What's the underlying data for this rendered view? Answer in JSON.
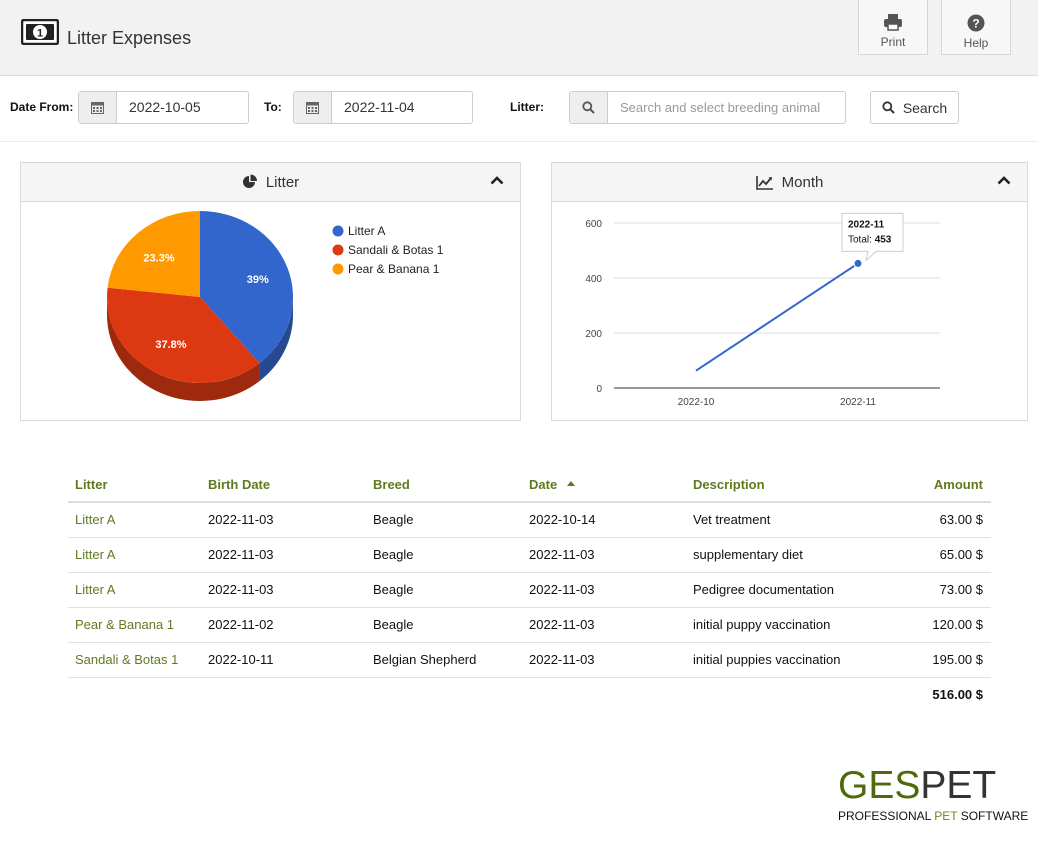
{
  "header": {
    "title": "Litter Expenses",
    "print_label": "Print",
    "help_label": "Help"
  },
  "filters": {
    "date_from_label": "Date From:",
    "date_from_value": "2022-10-05",
    "to_label": "To:",
    "to_value": "2022-11-04",
    "litter_label": "Litter:",
    "litter_placeholder": "Search and select breeding animal",
    "search_label": "Search"
  },
  "panels": {
    "litter_title": "Litter",
    "month_title": "Month"
  },
  "chart_data": [
    {
      "type": "pie",
      "title": "Litter",
      "legend_position": "top-right",
      "slices": [
        {
          "name": "Litter A",
          "value": 39,
          "label": "39%",
          "color": "#3366cc"
        },
        {
          "name": "Sandali & Botas 1",
          "value": 37.8,
          "label": "37.8%",
          "color": "#dc3912"
        },
        {
          "name": "Pear & Banana 1",
          "value": 23.3,
          "label": "23.3%",
          "color": "#ff9900"
        }
      ]
    },
    {
      "type": "line",
      "title": "Month",
      "categories": [
        "2022-10",
        "2022-11"
      ],
      "series": [
        {
          "name": "Total",
          "values": [
            63,
            453
          ],
          "color": "#3366cc"
        }
      ],
      "ylim": [
        0,
        600
      ],
      "yticks": [
        "0",
        "200",
        "400",
        "600"
      ],
      "grid": true,
      "tooltip": {
        "title": "2022-11",
        "label": "Total:",
        "value": "453"
      }
    }
  ],
  "table": {
    "headers": [
      "Litter",
      "Birth Date",
      "Breed",
      "Date",
      "Description",
      "Amount"
    ],
    "rows": [
      {
        "litter": "Litter A",
        "birth_date": "2022-11-03",
        "breed": "Beagle",
        "date": "2022-10-14",
        "description": "Vet treatment",
        "amount": "63.00 $"
      },
      {
        "litter": "Litter A",
        "birth_date": "2022-11-03",
        "breed": "Beagle",
        "date": "2022-11-03",
        "description": "supplementary diet",
        "amount": "65.00 $"
      },
      {
        "litter": "Litter A",
        "birth_date": "2022-11-03",
        "breed": "Beagle",
        "date": "2022-11-03",
        "description": "Pedigree documentation",
        "amount": "73.00 $"
      },
      {
        "litter": "Pear & Banana 1",
        "birth_date": "2022-11-02",
        "breed": "Beagle",
        "date": "2022-11-03",
        "description": "initial puppy vaccination",
        "amount": "120.00 $"
      },
      {
        "litter": "Sandali & Botas 1",
        "birth_date": "2022-10-11",
        "breed": "Belgian Shepherd",
        "date": "2022-11-03",
        "description": "initial puppies vaccination",
        "amount": "195.00 $"
      }
    ],
    "total": "516.00 $"
  },
  "brand": {
    "logo_part1": "GES",
    "logo_part2": "PET",
    "tagline_part1": "PROFESSIONAL ",
    "tagline_part2": "PET",
    "tagline_part3": " SOFTWARE"
  }
}
